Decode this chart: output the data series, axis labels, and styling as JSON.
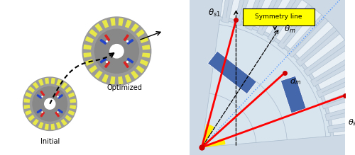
{
  "fig_width": 5.0,
  "fig_height": 2.19,
  "dpi": 100,
  "motor_gray": "#9a9a9a",
  "motor_yellow": "#e8e848",
  "motor_red": "#dd2222",
  "motor_blue": "#2244cc",
  "motor_white": "#ffffff",
  "label_initial": "Initial",
  "label_optimized": "Optimized",
  "symmetry_label": "Symmetry line",
  "symmetry_box_color": "#ffff00",
  "red_line_color": "#ff0000",
  "blue_dot_line_color": "#5599ff",
  "dot_color": "#cc0000",
  "yellow_wedge_color": "#ffee00",
  "blue_rect_color": "#4466aa",
  "pale_blue_bg": "#cdd9e5",
  "sector_bg": "#d8e4ee",
  "arc_color": "#aabbcc",
  "white_sector": "#e8eff5"
}
